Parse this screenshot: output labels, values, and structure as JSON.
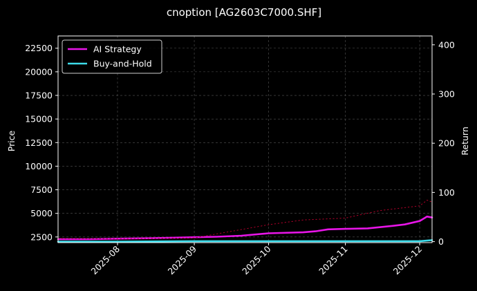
{
  "chart_data": {
    "type": "line",
    "title": "cnoption [AG2603C7000.SHF]",
    "xlabel": "",
    "ylabel": "Price",
    "y2label": "Return",
    "x_ticks": [
      "2025-08",
      "2025-09",
      "2025-10",
      "2025-11",
      "2025-12"
    ],
    "x_range": [
      "2025-07-08",
      "2025-12-06"
    ],
    "ylim": [
      1900,
      23800
    ],
    "y_ticks": [
      "2500",
      "5000",
      "7500",
      "10000",
      "12500",
      "15000",
      "17500",
      "20000",
      "22500"
    ],
    "y2lim": [
      -2,
      418
    ],
    "y2_ticks": [
      "0",
      "100",
      "200",
      "300",
      "400"
    ],
    "grid": true,
    "legend_position": "top-left",
    "series": [
      {
        "name": "AI Strategy",
        "axis": "return",
        "color": "#e815e8",
        "x": [
          "2025-07-08",
          "2025-07-20",
          "2025-08-01",
          "2025-08-15",
          "2025-09-01",
          "2025-09-10",
          "2025-09-20",
          "2025-10-01",
          "2025-10-15",
          "2025-10-20",
          "2025-10-25",
          "2025-11-01",
          "2025-11-10",
          "2025-11-20",
          "2025-11-25",
          "2025-12-01",
          "2025-12-04",
          "2025-12-06"
        ],
        "values": [
          5,
          5,
          6,
          7,
          9,
          10,
          12,
          17,
          19,
          21,
          25,
          26,
          27,
          32,
          35,
          42,
          51,
          49
        ]
      },
      {
        "name": "Buy-and-Hold",
        "axis": "return",
        "color": "#3ddcea",
        "x": [
          "2025-07-08",
          "2025-08-01",
          "2025-09-01",
          "2025-10-01",
          "2025-10-15",
          "2025-11-01",
          "2025-11-15",
          "2025-12-01",
          "2025-12-06"
        ],
        "values": [
          0,
          0,
          1,
          1,
          1,
          1,
          1,
          1,
          3
        ]
      },
      {
        "name": "Price",
        "axis": "price",
        "color": "#b0002a",
        "x": [
          "2025-07-08",
          "2025-08-01",
          "2025-09-01",
          "2025-10-01",
          "2025-10-15",
          "2025-11-01",
          "2025-11-15",
          "2025-12-01",
          "2025-12-04",
          "2025-12-06"
        ],
        "values": [
          2350,
          2300,
          2400,
          3800,
          4300,
          4500,
          5300,
          5800,
          6400,
          6200
        ]
      }
    ]
  }
}
